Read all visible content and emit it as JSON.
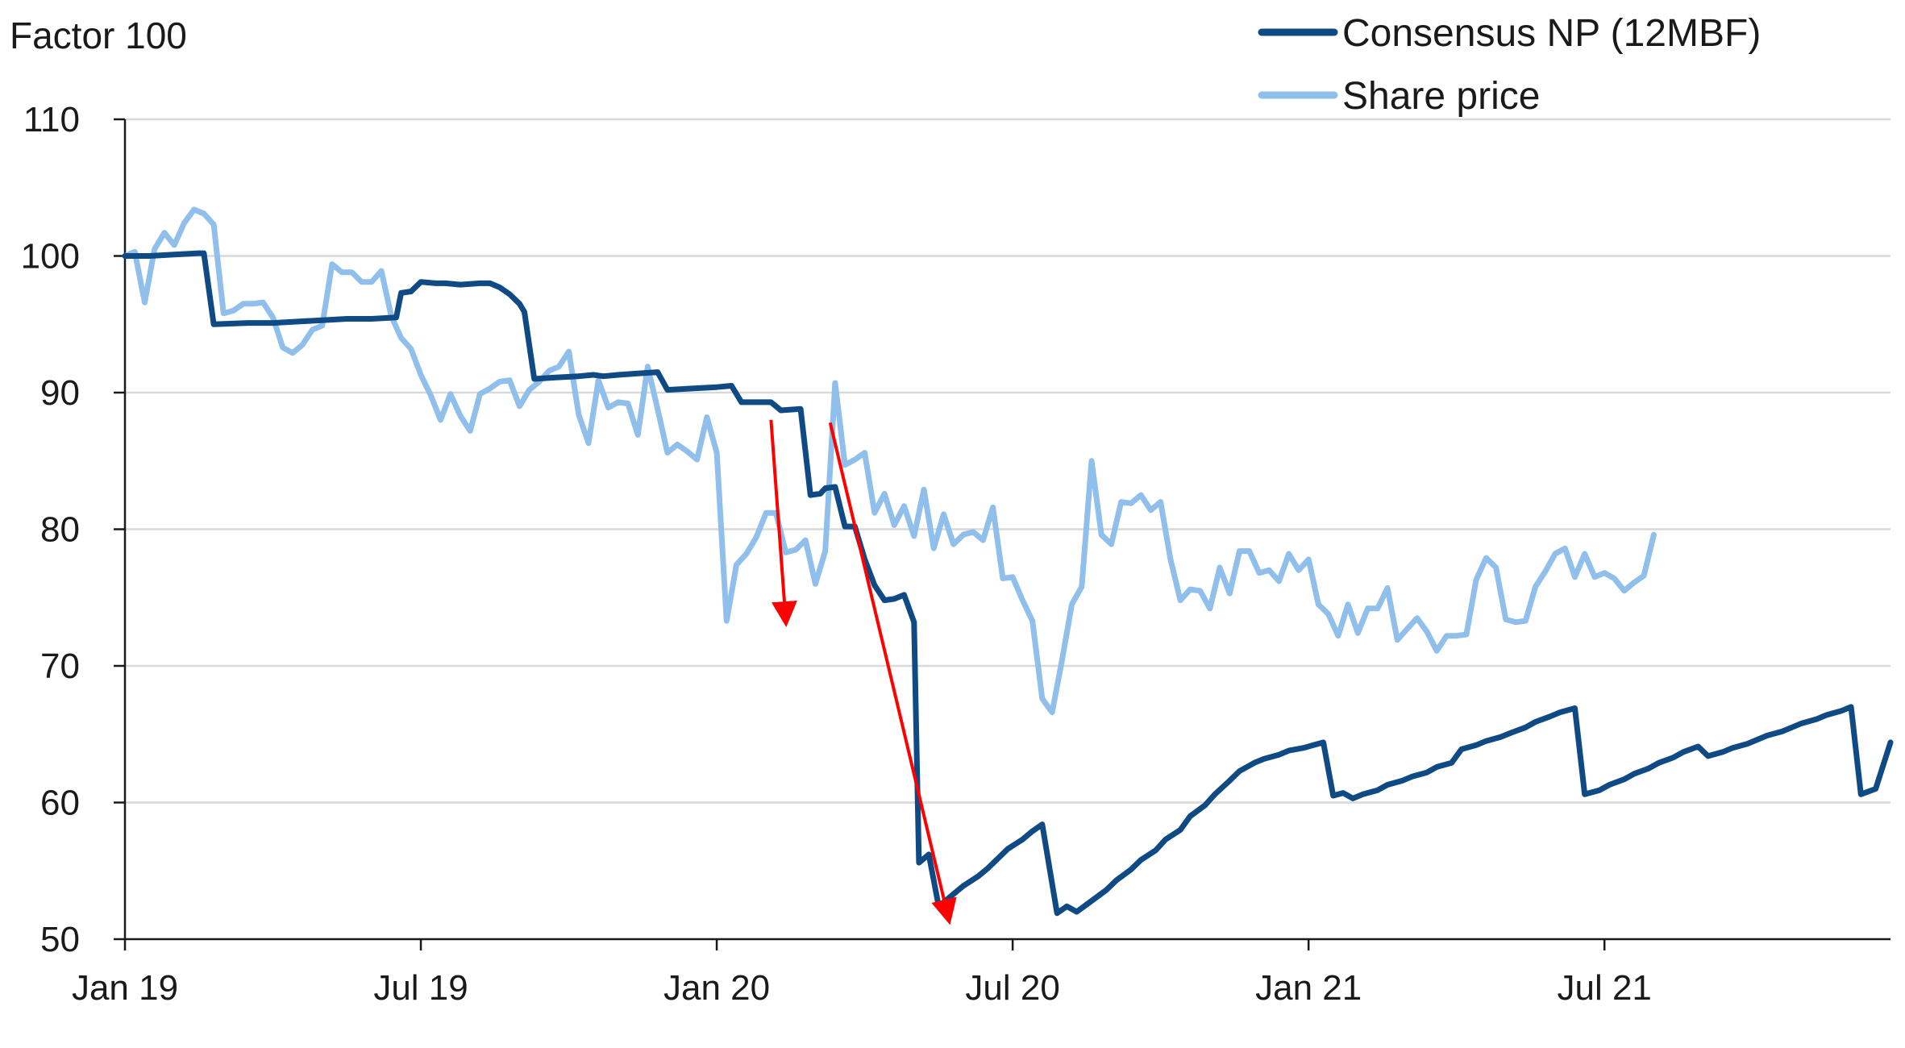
{
  "chart_data": {
    "type": "line",
    "unit_label": "Factor 100",
    "ylim": [
      50,
      110
    ],
    "y_ticks": [
      50,
      60,
      70,
      80,
      90,
      100,
      110
    ],
    "x_range_months": [
      0,
      35.8
    ],
    "x_ticks": [
      {
        "month": 0,
        "label": "Jan 19"
      },
      {
        "month": 6,
        "label": "Jul 19"
      },
      {
        "month": 12,
        "label": "Jan 20"
      },
      {
        "month": 18,
        "label": "Jul 20"
      },
      {
        "month": 24,
        "label": "Jan 21"
      },
      {
        "month": 30,
        "label": "Jul 21"
      }
    ],
    "grid": "horizontal",
    "legend_position": "top-right",
    "series": [
      {
        "name": "Consensus NP (12MBF)",
        "color": "#0f4a84",
        "points": [
          [
            0.0,
            100.0
          ],
          [
            0.5,
            100.0
          ],
          [
            1.0,
            100.1
          ],
          [
            1.5,
            100.2
          ],
          [
            1.6,
            100.2
          ],
          [
            1.8,
            95.0
          ],
          [
            2.5,
            95.1
          ],
          [
            3.0,
            95.1
          ],
          [
            3.5,
            95.2
          ],
          [
            4.0,
            95.3
          ],
          [
            4.5,
            95.4
          ],
          [
            5.0,
            95.4
          ],
          [
            5.5,
            95.5
          ],
          [
            5.6,
            97.3
          ],
          [
            5.8,
            97.4
          ],
          [
            6.0,
            98.1
          ],
          [
            6.3,
            98.0
          ],
          [
            6.5,
            98.0
          ],
          [
            6.8,
            97.9
          ],
          [
            7.2,
            98.0
          ],
          [
            7.4,
            98.0
          ],
          [
            7.6,
            97.7
          ],
          [
            7.8,
            97.2
          ],
          [
            8.0,
            96.5
          ],
          [
            8.1,
            95.9
          ],
          [
            8.3,
            91.0
          ],
          [
            8.7,
            91.1
          ],
          [
            9.2,
            91.2
          ],
          [
            9.5,
            91.3
          ],
          [
            9.7,
            91.2
          ],
          [
            10.0,
            91.3
          ],
          [
            10.4,
            91.4
          ],
          [
            10.8,
            91.5
          ],
          [
            11.0,
            90.2
          ],
          [
            11.5,
            90.3
          ],
          [
            12.0,
            90.4
          ],
          [
            12.3,
            90.5
          ],
          [
            12.5,
            89.3
          ],
          [
            12.9,
            89.3
          ],
          [
            13.1,
            89.3
          ],
          [
            13.3,
            88.7
          ],
          [
            13.7,
            88.8
          ],
          [
            13.9,
            82.5
          ],
          [
            14.1,
            82.6
          ],
          [
            14.2,
            83.0
          ],
          [
            14.4,
            83.1
          ],
          [
            14.6,
            80.2
          ],
          [
            14.8,
            80.2
          ],
          [
            15.0,
            77.8
          ],
          [
            15.2,
            75.9
          ],
          [
            15.4,
            74.8
          ],
          [
            15.6,
            74.9
          ],
          [
            15.8,
            75.2
          ],
          [
            16.0,
            73.2
          ],
          [
            16.1,
            55.6
          ],
          [
            16.3,
            56.2
          ],
          [
            16.5,
            52.4
          ],
          [
            16.8,
            53.3
          ],
          [
            17.0,
            53.9
          ],
          [
            17.3,
            54.6
          ],
          [
            17.5,
            55.2
          ],
          [
            17.7,
            55.9
          ],
          [
            17.9,
            56.6
          ],
          [
            18.2,
            57.3
          ],
          [
            18.4,
            57.9
          ],
          [
            18.6,
            58.4
          ],
          [
            18.9,
            51.9
          ],
          [
            19.1,
            52.4
          ],
          [
            19.3,
            52.0
          ],
          [
            19.6,
            52.8
          ],
          [
            19.9,
            53.6
          ],
          [
            20.1,
            54.3
          ],
          [
            20.4,
            55.1
          ],
          [
            20.6,
            55.8
          ],
          [
            20.9,
            56.5
          ],
          [
            21.1,
            57.3
          ],
          [
            21.4,
            58.0
          ],
          [
            21.6,
            59.0
          ],
          [
            21.9,
            59.8
          ],
          [
            22.1,
            60.6
          ],
          [
            22.4,
            61.6
          ],
          [
            22.6,
            62.3
          ],
          [
            22.9,
            62.9
          ],
          [
            23.1,
            63.2
          ],
          [
            23.4,
            63.5
          ],
          [
            23.6,
            63.8
          ],
          [
            23.9,
            64.0
          ],
          [
            24.1,
            64.2
          ],
          [
            24.3,
            64.4
          ],
          [
            24.5,
            60.5
          ],
          [
            24.7,
            60.7
          ],
          [
            24.9,
            60.3
          ],
          [
            25.1,
            60.6
          ],
          [
            25.4,
            60.9
          ],
          [
            25.6,
            61.3
          ],
          [
            25.9,
            61.6
          ],
          [
            26.1,
            61.9
          ],
          [
            26.4,
            62.2
          ],
          [
            26.6,
            62.6
          ],
          [
            26.9,
            62.9
          ],
          [
            27.1,
            63.9
          ],
          [
            27.4,
            64.2
          ],
          [
            27.6,
            64.5
          ],
          [
            27.9,
            64.8
          ],
          [
            28.1,
            65.1
          ],
          [
            28.4,
            65.5
          ],
          [
            28.6,
            65.9
          ],
          [
            28.9,
            66.3
          ],
          [
            29.1,
            66.6
          ],
          [
            29.4,
            66.9
          ],
          [
            29.6,
            60.6
          ],
          [
            29.9,
            60.9
          ],
          [
            30.1,
            61.3
          ],
          [
            30.4,
            61.7
          ],
          [
            30.6,
            62.1
          ],
          [
            30.9,
            62.5
          ],
          [
            31.1,
            62.9
          ],
          [
            31.4,
            63.3
          ],
          [
            31.6,
            63.7
          ],
          [
            31.9,
            64.1
          ],
          [
            32.1,
            63.4
          ],
          [
            32.4,
            63.7
          ],
          [
            32.6,
            64.0
          ],
          [
            32.9,
            64.3
          ],
          [
            33.1,
            64.6
          ],
          [
            33.3,
            64.9
          ],
          [
            33.6,
            65.2
          ],
          [
            33.8,
            65.5
          ],
          [
            34.0,
            65.8
          ],
          [
            34.3,
            66.1
          ],
          [
            34.5,
            66.4
          ],
          [
            34.8,
            66.7
          ],
          [
            35.0,
            67.0
          ],
          [
            35.2,
            60.6
          ],
          [
            35.5,
            61.0
          ],
          [
            35.8,
            64.4
          ]
        ]
      },
      {
        "name": "Share price",
        "color": "#8fbfea",
        "points": [
          [
            0.0,
            100.0
          ],
          [
            0.2,
            100.3
          ],
          [
            0.4,
            96.6
          ],
          [
            0.6,
            100.5
          ],
          [
            0.8,
            101.7
          ],
          [
            1.0,
            100.8
          ],
          [
            1.2,
            102.4
          ],
          [
            1.4,
            103.4
          ],
          [
            1.6,
            103.1
          ],
          [
            1.8,
            102.3
          ],
          [
            2.0,
            95.8
          ],
          [
            2.2,
            96.0
          ],
          [
            2.4,
            96.5
          ],
          [
            2.6,
            96.5
          ],
          [
            2.8,
            96.6
          ],
          [
            3.0,
            95.5
          ],
          [
            3.2,
            93.3
          ],
          [
            3.4,
            92.9
          ],
          [
            3.6,
            93.5
          ],
          [
            3.8,
            94.6
          ],
          [
            4.0,
            94.9
          ],
          [
            4.2,
            99.4
          ],
          [
            4.4,
            98.8
          ],
          [
            4.6,
            98.8
          ],
          [
            4.8,
            98.1
          ],
          [
            5.0,
            98.1
          ],
          [
            5.2,
            98.9
          ],
          [
            5.4,
            95.6
          ],
          [
            5.6,
            94.0
          ],
          [
            5.8,
            93.2
          ],
          [
            6.0,
            91.3
          ],
          [
            6.2,
            89.8
          ],
          [
            6.4,
            88.0
          ],
          [
            6.6,
            89.9
          ],
          [
            6.8,
            88.3
          ],
          [
            7.0,
            87.2
          ],
          [
            7.2,
            89.9
          ],
          [
            7.4,
            90.3
          ],
          [
            7.6,
            90.8
          ],
          [
            7.8,
            90.9
          ],
          [
            8.0,
            89.0
          ],
          [
            8.2,
            90.2
          ],
          [
            8.4,
            90.8
          ],
          [
            8.6,
            91.6
          ],
          [
            8.8,
            91.9
          ],
          [
            9.0,
            93.0
          ],
          [
            9.2,
            88.4
          ],
          [
            9.4,
            86.3
          ],
          [
            9.6,
            90.9
          ],
          [
            9.8,
            88.9
          ],
          [
            10.0,
            89.3
          ],
          [
            10.2,
            89.2
          ],
          [
            10.4,
            86.9
          ],
          [
            10.6,
            91.9
          ],
          [
            10.8,
            88.8
          ],
          [
            11.0,
            85.6
          ],
          [
            11.2,
            86.2
          ],
          [
            11.4,
            85.7
          ],
          [
            11.6,
            85.1
          ],
          [
            11.8,
            88.2
          ],
          [
            12.0,
            85.6
          ],
          [
            12.2,
            73.3
          ],
          [
            12.4,
            77.4
          ],
          [
            12.6,
            78.2
          ],
          [
            12.8,
            79.4
          ],
          [
            13.0,
            81.2
          ],
          [
            13.2,
            81.2
          ],
          [
            13.4,
            78.3
          ],
          [
            13.6,
            78.5
          ],
          [
            13.8,
            79.2
          ],
          [
            14.0,
            76.0
          ],
          [
            14.2,
            78.4
          ],
          [
            14.4,
            90.7
          ],
          [
            14.6,
            84.7
          ],
          [
            14.8,
            85.1
          ],
          [
            15.0,
            85.6
          ],
          [
            15.2,
            81.2
          ],
          [
            15.4,
            82.6
          ],
          [
            15.6,
            80.3
          ],
          [
            15.8,
            81.7
          ],
          [
            16.0,
            79.5
          ],
          [
            16.2,
            82.9
          ],
          [
            16.4,
            78.6
          ],
          [
            16.6,
            81.1
          ],
          [
            16.8,
            78.9
          ],
          [
            17.0,
            79.6
          ],
          [
            17.2,
            79.8
          ],
          [
            17.4,
            79.2
          ],
          [
            17.6,
            81.6
          ],
          [
            17.8,
            76.4
          ],
          [
            18.0,
            76.5
          ],
          [
            18.2,
            74.8
          ],
          [
            18.4,
            73.3
          ],
          [
            18.6,
            67.6
          ],
          [
            18.8,
            66.6
          ],
          [
            19.0,
            70.4
          ],
          [
            19.2,
            74.5
          ],
          [
            19.4,
            75.8
          ],
          [
            19.6,
            85.0
          ],
          [
            19.8,
            79.6
          ],
          [
            20.0,
            78.9
          ],
          [
            20.2,
            82.0
          ],
          [
            20.4,
            81.9
          ],
          [
            20.6,
            82.5
          ],
          [
            20.8,
            81.4
          ],
          [
            21.0,
            82.0
          ],
          [
            21.2,
            77.8
          ],
          [
            21.4,
            74.8
          ],
          [
            21.6,
            75.6
          ],
          [
            21.8,
            75.5
          ],
          [
            22.0,
            74.2
          ],
          [
            22.2,
            77.2
          ],
          [
            22.4,
            75.3
          ],
          [
            22.6,
            78.4
          ],
          [
            22.8,
            78.4
          ],
          [
            23.0,
            76.8
          ],
          [
            23.2,
            77.0
          ],
          [
            23.4,
            76.2
          ],
          [
            23.6,
            78.2
          ],
          [
            23.8,
            77.0
          ],
          [
            24.0,
            77.8
          ],
          [
            24.2,
            74.5
          ],
          [
            24.4,
            73.8
          ],
          [
            24.6,
            72.2
          ],
          [
            24.8,
            74.5
          ],
          [
            25.0,
            72.4
          ],
          [
            25.2,
            74.2
          ],
          [
            25.4,
            74.2
          ],
          [
            25.6,
            75.7
          ],
          [
            25.8,
            71.9
          ],
          [
            26.0,
            72.7
          ],
          [
            26.2,
            73.5
          ],
          [
            26.4,
            72.5
          ],
          [
            26.6,
            71.1
          ],
          [
            26.8,
            72.2
          ],
          [
            27.0,
            72.2
          ],
          [
            27.2,
            72.3
          ],
          [
            27.4,
            76.3
          ],
          [
            27.6,
            77.9
          ],
          [
            27.8,
            77.2
          ],
          [
            28.0,
            73.4
          ],
          [
            28.2,
            73.2
          ],
          [
            28.4,
            73.3
          ],
          [
            28.6,
            75.8
          ],
          [
            28.8,
            76.9
          ],
          [
            29.0,
            78.2
          ],
          [
            29.2,
            78.6
          ],
          [
            29.4,
            76.5
          ],
          [
            29.6,
            78.2
          ],
          [
            29.8,
            76.5
          ],
          [
            30.0,
            76.8
          ],
          [
            30.2,
            76.4
          ],
          [
            30.4,
            75.5
          ],
          [
            30.6,
            76.1
          ],
          [
            30.8,
            76.6
          ],
          [
            31.0,
            79.6
          ]
        ]
      }
    ],
    "annotations": [
      {
        "type": "arrow",
        "color": "#ff0000",
        "from": [
          13.1,
          88.0
        ],
        "to": [
          13.4,
          73.3
        ]
      },
      {
        "type": "arrow",
        "color": "#ff0000",
        "from": [
          14.3,
          87.8
        ],
        "to": [
          16.7,
          51.5
        ]
      }
    ]
  }
}
